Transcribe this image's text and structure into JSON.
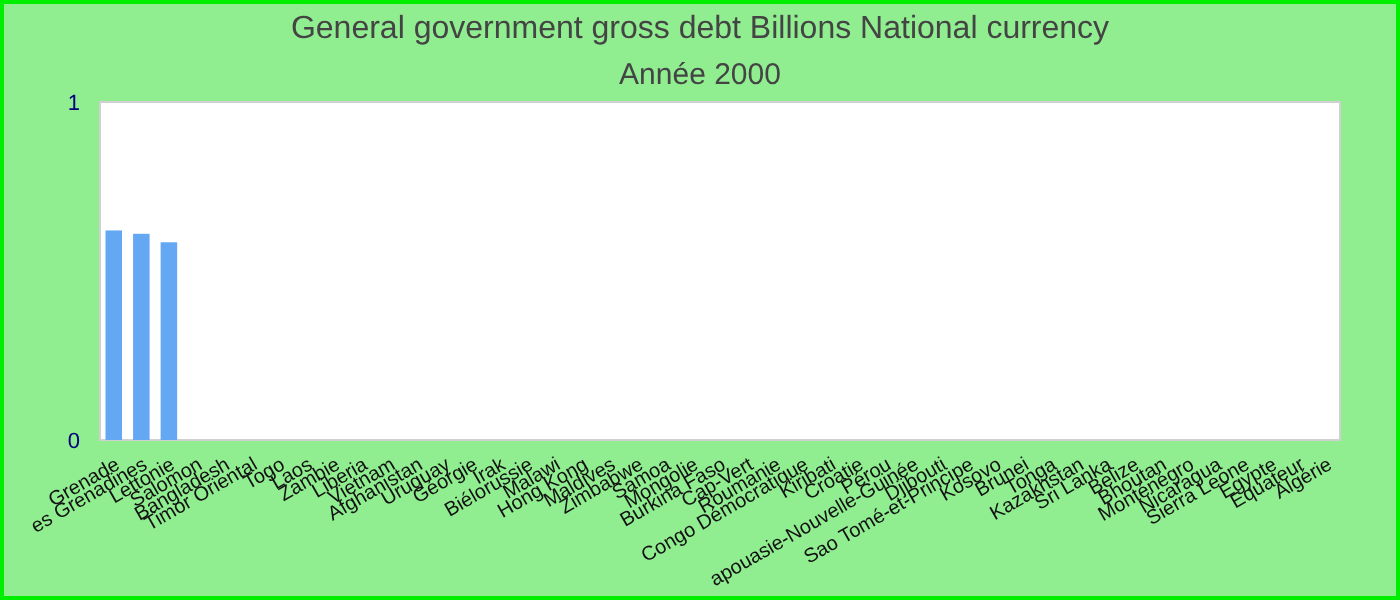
{
  "chart_data": {
    "type": "bar",
    "title": "General government gross debt Billions National currency",
    "subtitle": "Année 2000",
    "categories": [
      "Grenade",
      "es Grenadines",
      "Lettonie",
      "Salomon",
      "Bangladesh",
      "Timor Oriental",
      "Togo",
      "Laos",
      "Zambie",
      "Liberia",
      "Vietnam",
      "Afghanistan",
      "Uruguay",
      "Géorgie",
      "Irak",
      "Biélorussie",
      "Malawi",
      "Hong Kong",
      "Maldives",
      "Zimbabwe",
      "Samoa",
      "Mongolie",
      "Burkina Faso",
      "Cap-Vert",
      "Roumanie",
      "Congo Démocratique",
      "Kiribati",
      "Croatie",
      "Pérou",
      "apouasie-Nouvelle-Guinée",
      "Djibouti",
      "Sao Tomé-et-Principe",
      "Kosovo",
      "Brunei",
      "Tonga",
      "Kazakhstan",
      "Sri Lanka",
      "Belize",
      "Bhoutan",
      "Monténégro",
      "Nicaragua",
      "Sierra Leone",
      "Egypte",
      "Equateur",
      "Algérie"
    ],
    "values": [
      0.62,
      0.61,
      0.585,
      0,
      0,
      0,
      0,
      0,
      0,
      0,
      0,
      0,
      0,
      0,
      0,
      0,
      0,
      0,
      0,
      0,
      0,
      0,
      0,
      0,
      0,
      0,
      0,
      0,
      0,
      0,
      0,
      0,
      0,
      0,
      0,
      0,
      0,
      0,
      0,
      0,
      0,
      0,
      0,
      0,
      0
    ],
    "color": "#64a8f4",
    "ylim": [
      0,
      1
    ],
    "yticks": [
      0,
      1
    ],
    "grid": false
  }
}
